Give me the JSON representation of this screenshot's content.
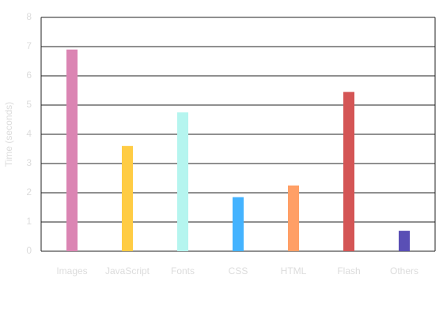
{
  "chart_data": {
    "type": "bar",
    "y_label": "Time (seconds)",
    "categories": [
      "Images",
      "JavaScript",
      "Fonts",
      "CSS",
      "HTML",
      "Flash",
      "Others"
    ],
    "values": [
      6.9,
      3.6,
      4.75,
      1.85,
      2.25,
      5.45,
      0.7
    ],
    "colors": [
      "#db85b3",
      "#ffcc44",
      "#b5f5ef",
      "#44b3ff",
      "#ff9f66",
      "#d45555",
      "#5a4fb5"
    ],
    "ylim": [
      0,
      8
    ],
    "yticks": [
      0,
      1,
      2,
      3,
      4,
      5,
      6,
      7,
      8
    ],
    "grid": true
  }
}
